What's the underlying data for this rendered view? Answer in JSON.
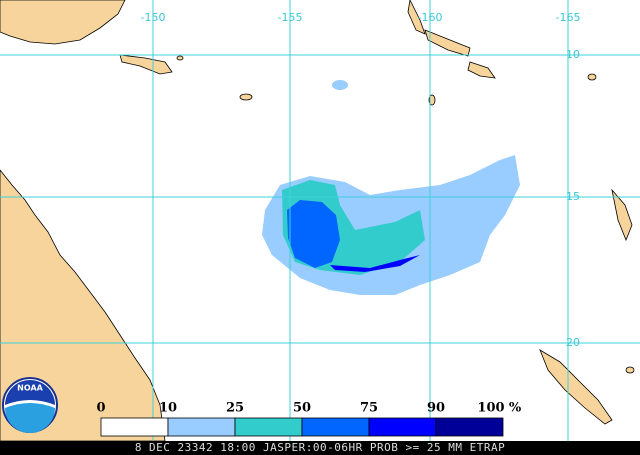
{
  "map": {
    "longitudes": [
      "-150",
      "-155",
      "-160",
      "-165"
    ],
    "latitudes": [
      "-10",
      "-15",
      "-20"
    ]
  },
  "legend": {
    "labels": [
      "0",
      "10",
      "25",
      "50",
      "75",
      "90",
      "100"
    ],
    "unit": "%",
    "colors": [
      "#ffffff",
      "#99ccff",
      "#33cccc",
      "#0066ff",
      "#0000ff",
      "#000099"
    ]
  },
  "logo": "NOAA",
  "footer": "8 DEC 23342 18:00 JASPER:00-06HR PROB >= 25 MM ETRAP"
}
